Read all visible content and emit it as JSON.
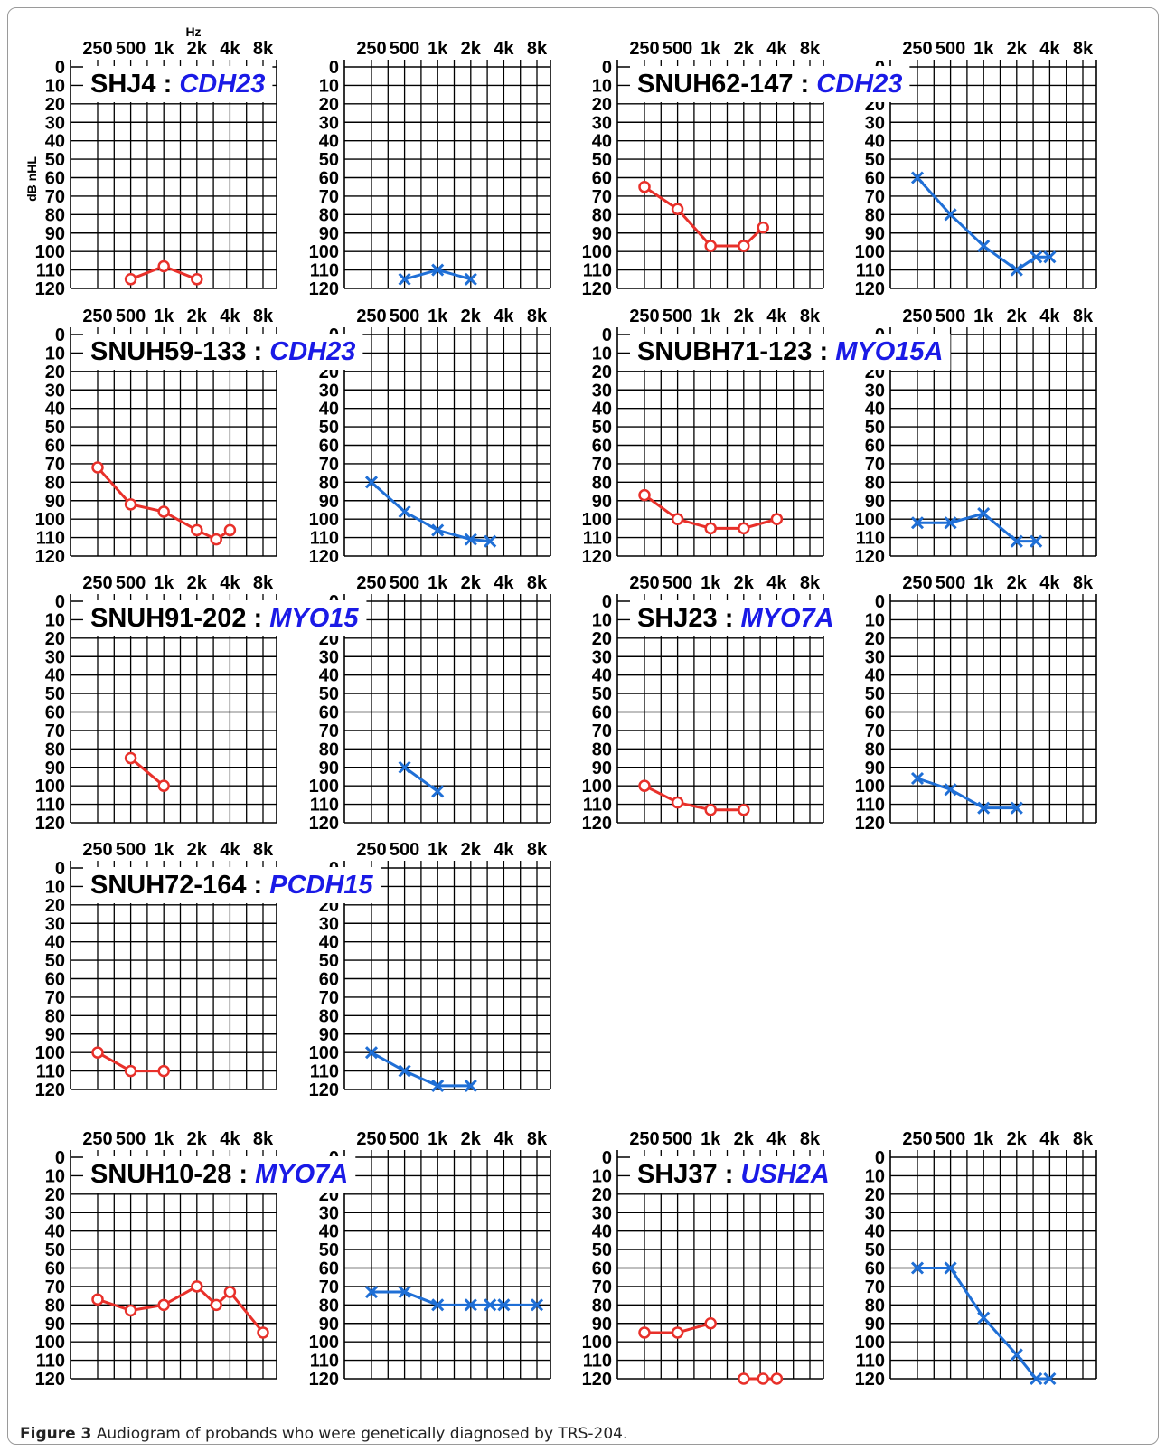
{
  "figure": {
    "hz_label": "Hz",
    "ylabel": "dB nHL",
    "caption_label": "Figure 3",
    "caption_text": "Audiogram of probands who were genetically diagnosed by TRS-204.",
    "colors": {
      "right_ear": "#e8302a",
      "left_ear": "#1f6fd6",
      "gene_text": "#1a1ae6",
      "grid": "#000000"
    }
  },
  "chart_data": [
    {
      "type": "line",
      "proband": "SHJ4",
      "gene": "CDH23",
      "x_tick_labels": [
        "250",
        "500",
        "1k",
        "2k",
        "4k",
        "8k"
      ],
      "y_tick_labels": [
        "0",
        "10",
        "20",
        "30",
        "40",
        "50",
        "60",
        "70",
        "80",
        "90",
        "100",
        "110",
        "120"
      ],
      "ylim": [
        0,
        120
      ],
      "y_inverted": true,
      "grid": true,
      "series": [
        {
          "ear": "right",
          "marker": "circle",
          "color": "#e8302a",
          "x": [
            500,
            1000,
            2000
          ],
          "y": [
            115,
            108,
            115
          ]
        },
        {
          "ear": "left",
          "marker": "x",
          "color": "#1f6fd6",
          "x": [
            500,
            1000,
            2000
          ],
          "y": [
            115,
            110,
            115
          ]
        }
      ]
    },
    {
      "type": "line",
      "proband": "SNUH62-147",
      "gene": "CDH23",
      "x_tick_labels": [
        "250",
        "500",
        "1k",
        "2k",
        "4k",
        "8k"
      ],
      "y_tick_labels": [
        "0",
        "10",
        "20",
        "30",
        "40",
        "50",
        "60",
        "70",
        "80",
        "90",
        "100",
        "110",
        "120"
      ],
      "ylim": [
        0,
        120
      ],
      "y_inverted": true,
      "grid": true,
      "series": [
        {
          "ear": "right",
          "marker": "circle",
          "color": "#e8302a",
          "x": [
            250,
            500,
            1000,
            2000,
            3000
          ],
          "y": [
            65,
            77,
            97,
            97,
            87
          ]
        },
        {
          "ear": "left",
          "marker": "x",
          "color": "#1f6fd6",
          "x": [
            250,
            500,
            1000,
            2000,
            3000,
            4000
          ],
          "y": [
            60,
            80,
            97,
            110,
            103,
            103
          ]
        }
      ]
    },
    {
      "type": "line",
      "proband": "SNUH59-133",
      "gene": "CDH23",
      "x_tick_labels": [
        "250",
        "500",
        "1k",
        "2k",
        "4k",
        "8k"
      ],
      "y_tick_labels": [
        "0",
        "10",
        "20",
        "30",
        "40",
        "50",
        "60",
        "70",
        "80",
        "90",
        "100",
        "110",
        "120"
      ],
      "ylim": [
        0,
        120
      ],
      "y_inverted": true,
      "grid": true,
      "series": [
        {
          "ear": "right",
          "marker": "circle",
          "color": "#e8302a",
          "x": [
            250,
            500,
            1000,
            2000,
            3000,
            4000
          ],
          "y": [
            72,
            92,
            96,
            106,
            111,
            106
          ]
        },
        {
          "ear": "left",
          "marker": "x",
          "color": "#1f6fd6",
          "x": [
            250,
            500,
            1000,
            2000,
            3000
          ],
          "y": [
            80,
            96,
            106,
            111,
            112
          ]
        }
      ]
    },
    {
      "type": "line",
      "proband": "SNUBH71-123",
      "gene": "MYO15A",
      "x_tick_labels": [
        "250",
        "500",
        "1k",
        "2k",
        "4k",
        "8k"
      ],
      "y_tick_labels": [
        "0",
        "10",
        "20",
        "30",
        "40",
        "50",
        "60",
        "70",
        "80",
        "90",
        "100",
        "110",
        "120"
      ],
      "ylim": [
        0,
        120
      ],
      "y_inverted": true,
      "grid": true,
      "series": [
        {
          "ear": "right",
          "marker": "circle",
          "color": "#e8302a",
          "x": [
            250,
            500,
            1000,
            2000,
            4000
          ],
          "y": [
            87,
            100,
            105,
            105,
            100
          ]
        },
        {
          "ear": "left",
          "marker": "x",
          "color": "#1f6fd6",
          "x": [
            250,
            500,
            1000,
            2000,
            3000
          ],
          "y": [
            102,
            102,
            97,
            112,
            112
          ]
        }
      ]
    },
    {
      "type": "line",
      "proband": "SNUH91-202",
      "gene": "MYO15",
      "x_tick_labels": [
        "250",
        "500",
        "1k",
        "2k",
        "4k",
        "8k"
      ],
      "y_tick_labels": [
        "0",
        "10",
        "20",
        "30",
        "40",
        "50",
        "60",
        "70",
        "80",
        "90",
        "100",
        "110",
        "120"
      ],
      "ylim": [
        0,
        120
      ],
      "y_inverted": true,
      "grid": true,
      "series": [
        {
          "ear": "right",
          "marker": "circle",
          "color": "#e8302a",
          "x": [
            500,
            1000
          ],
          "y": [
            85,
            100
          ]
        },
        {
          "ear": "left",
          "marker": "x",
          "color": "#1f6fd6",
          "x": [
            500,
            1000
          ],
          "y": [
            90,
            103
          ]
        }
      ]
    },
    {
      "type": "line",
      "proband": "SHJ23",
      "gene": "MYO7A",
      "x_tick_labels": [
        "250",
        "500",
        "1k",
        "2k",
        "4k",
        "8k"
      ],
      "y_tick_labels": [
        "0",
        "10",
        "20",
        "30",
        "40",
        "50",
        "60",
        "70",
        "80",
        "90",
        "100",
        "110",
        "120"
      ],
      "ylim": [
        0,
        120
      ],
      "y_inverted": true,
      "grid": true,
      "series": [
        {
          "ear": "right",
          "marker": "circle",
          "color": "#e8302a",
          "x": [
            250,
            500,
            1000,
            2000
          ],
          "y": [
            100,
            109,
            113,
            113
          ]
        },
        {
          "ear": "left",
          "marker": "x",
          "color": "#1f6fd6",
          "x": [
            250,
            500,
            1000,
            2000
          ],
          "y": [
            96,
            102,
            112,
            112
          ]
        }
      ]
    },
    {
      "type": "line",
      "proband": "SNUH72-164",
      "gene": "PCDH15",
      "x_tick_labels": [
        "250",
        "500",
        "1k",
        "2k",
        "4k",
        "8k"
      ],
      "y_tick_labels": [
        "0",
        "10",
        "20",
        "30",
        "40",
        "50",
        "60",
        "70",
        "80",
        "90",
        "100",
        "110",
        "120"
      ],
      "ylim": [
        0,
        120
      ],
      "y_inverted": true,
      "grid": true,
      "series": [
        {
          "ear": "right",
          "marker": "circle",
          "color": "#e8302a",
          "x": [
            250,
            500,
            1000
          ],
          "y": [
            100,
            110,
            110
          ]
        },
        {
          "ear": "left",
          "marker": "x",
          "color": "#1f6fd6",
          "x": [
            250,
            500,
            1000,
            2000
          ],
          "y": [
            100,
            110,
            118,
            118
          ]
        }
      ]
    },
    {
      "type": "line",
      "proband": "SNUH10-28",
      "gene": "MYO7A",
      "x_tick_labels": [
        "250",
        "500",
        "1k",
        "2k",
        "4k",
        "8k"
      ],
      "y_tick_labels": [
        "0",
        "10",
        "20",
        "30",
        "40",
        "50",
        "60",
        "70",
        "80",
        "90",
        "100",
        "110",
        "120"
      ],
      "ylim": [
        0,
        120
      ],
      "y_inverted": true,
      "grid": true,
      "series": [
        {
          "ear": "right",
          "marker": "circle",
          "color": "#e8302a",
          "x": [
            250,
            500,
            1000,
            2000,
            3000,
            4000,
            8000
          ],
          "y": [
            77,
            83,
            80,
            70,
            80,
            73,
            95
          ]
        },
        {
          "ear": "left",
          "marker": "x",
          "color": "#1f6fd6",
          "x": [
            250,
            500,
            1000,
            2000,
            3000,
            4000,
            8000
          ],
          "y": [
            73,
            73,
            80,
            80,
            80,
            80,
            80
          ]
        }
      ]
    },
    {
      "type": "line",
      "proband": "SHJ37",
      "gene": "USH2A",
      "x_tick_labels": [
        "250",
        "500",
        "1k",
        "2k",
        "4k",
        "8k"
      ],
      "y_tick_labels": [
        "0",
        "10",
        "20",
        "30",
        "40",
        "50",
        "60",
        "70",
        "80",
        "90",
        "100",
        "110",
        "120"
      ],
      "ylim": [
        0,
        120
      ],
      "y_inverted": true,
      "grid": true,
      "series": [
        {
          "ear": "right",
          "marker": "circle",
          "color": "#e8302a",
          "x": [
            250,
            500,
            1000
          ],
          "y": [
            95,
            95,
            90
          ]
        },
        {
          "ear": "right",
          "marker": "circle",
          "color": "#e8302a",
          "x": [
            2000,
            3000,
            4000
          ],
          "y": [
            120,
            120,
            120
          ]
        },
        {
          "ear": "left",
          "marker": "x",
          "color": "#1f6fd6",
          "x": [
            250,
            500,
            1000,
            2000,
            3000,
            4000
          ],
          "y": [
            60,
            60,
            87,
            107,
            120,
            120
          ]
        }
      ]
    }
  ]
}
